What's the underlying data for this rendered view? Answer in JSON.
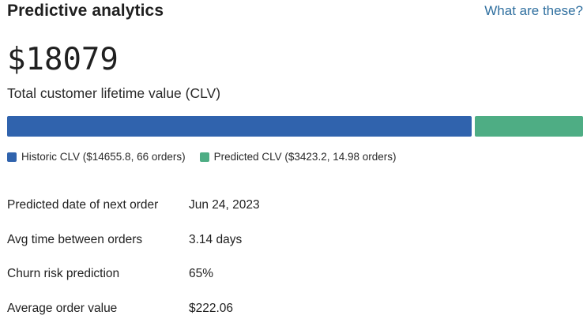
{
  "header": {
    "title": "Predictive analytics",
    "help_link": "What are these?"
  },
  "clv": {
    "value": "$18079",
    "label": "Total customer lifetime value (CLV)",
    "historic_amount": 14655.8,
    "predicted_amount": 3423.2
  },
  "legend": {
    "historic": {
      "label": "Historic CLV ($14655.8, 66 orders)",
      "color": "#3063ad"
    },
    "predicted": {
      "label": "Predicted CLV ($3423.2, 14.98 orders)",
      "color": "#4ead84"
    }
  },
  "stats": [
    {
      "label": "Predicted date of next order",
      "value": "Jun 24, 2023"
    },
    {
      "label": "Avg time between orders",
      "value": "3.14 days"
    },
    {
      "label": "Churn risk prediction",
      "value": "65%"
    },
    {
      "label": "Average order value",
      "value": "$222.06"
    }
  ]
}
